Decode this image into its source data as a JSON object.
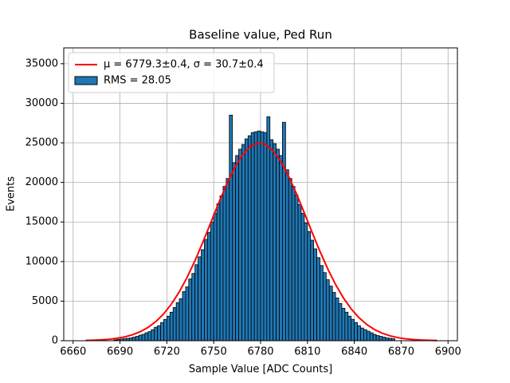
{
  "chart_data": {
    "type": "histogram",
    "title": "Baseline value, Ped Run",
    "xlabel": "Sample Value [ADC Counts]",
    "ylabel": "Events",
    "name": "RMS = 28.05",
    "color": "#1f77b4",
    "edgecolor": "#000000",
    "bins": [
      6686,
      6688,
      6690,
      6692,
      6694,
      6696,
      6698,
      6700,
      6702,
      6704,
      6706,
      6708,
      6710,
      6712,
      6714,
      6716,
      6718,
      6720,
      6722,
      6724,
      6726,
      6728,
      6730,
      6732,
      6734,
      6736,
      6738,
      6740,
      6742,
      6744,
      6746,
      6748,
      6750,
      6752,
      6754,
      6756,
      6758,
      6760,
      6762,
      6764,
      6766,
      6768,
      6770,
      6772,
      6774,
      6776,
      6778,
      6780,
      6782,
      6784,
      6786,
      6788,
      6790,
      6792,
      6794,
      6796,
      6798,
      6800,
      6802,
      6804,
      6806,
      6808,
      6810,
      6812,
      6814,
      6816,
      6818,
      6820,
      6822,
      6824,
      6826,
      6828,
      6830,
      6832,
      6834,
      6836,
      6838,
      6840,
      6842,
      6844,
      6846,
      6848,
      6850,
      6852,
      6854,
      6856,
      6858,
      6860,
      6862,
      6864,
      6866
    ],
    "counts": [
      100,
      150,
      200,
      250,
      300,
      350,
      450,
      550,
      700,
      800,
      1000,
      1150,
      1400,
      1700,
      1900,
      2300,
      2700,
      3100,
      3600,
      4200,
      4800,
      5300,
      6200,
      6800,
      7800,
      8500,
      9600,
      10600,
      11500,
      12800,
      13700,
      15000,
      16100,
      17300,
      18300,
      19500,
      20500,
      28500,
      22500,
      23400,
      24200,
      24800,
      25500,
      25900,
      26300,
      26400,
      26500,
      26400,
      26300,
      28300,
      25400,
      24900,
      24200,
      23400,
      27600,
      21600,
      20500,
      19500,
      18400,
      17200,
      16100,
      14900,
      13800,
      12700,
      11600,
      10500,
      9500,
      8600,
      7700,
      6900,
      6100,
      5400,
      4700,
      4100,
      3600,
      3100,
      2700,
      2300,
      1900,
      1600,
      1400,
      1200,
      1000,
      800,
      650,
      550,
      450,
      350,
      300,
      250
    ],
    "fit": {
      "name": "μ = 6779.3±0.4, σ = 30.7±0.4",
      "color": "#ff0000",
      "x": [
        6668,
        6673,
        6678,
        6683,
        6688,
        6693,
        6698,
        6703,
        6708,
        6713,
        6718,
        6723,
        6728,
        6733,
        6738,
        6743,
        6748,
        6753,
        6758,
        6763,
        6768,
        6773,
        6778,
        6783,
        6788,
        6793,
        6798,
        6803,
        6808,
        6813,
        6818,
        6823,
        6828,
        6833,
        6838,
        6843,
        6848,
        6853,
        6858,
        6863,
        6868,
        6873,
        6878,
        6883,
        6888,
        6893
      ],
      "values": [
        35,
        62,
        108,
        183,
        300,
        481,
        750,
        1140,
        1686,
        2428,
        3405,
        4653,
        6190,
        8018,
        10113,
        12425,
        14863,
        17320,
        19650,
        21713,
        23363,
        24480,
        24978,
        24820,
        24015,
        22630,
        20768,
        18558,
        16150,
        13685,
        11295,
        9078,
        7105,
        5415,
        4018,
        2905,
        2045,
        1400,
        935,
        608,
        385,
        237,
        142,
        83,
        47,
        26
      ]
    },
    "xlim": [
      6654,
      6906
    ],
    "ylim": [
      0,
      37000
    ],
    "xticks": [
      6660,
      6690,
      6720,
      6750,
      6780,
      6810,
      6840,
      6870,
      6900
    ],
    "yticks": [
      0,
      5000,
      10000,
      15000,
      20000,
      25000,
      30000,
      35000
    ],
    "grid": true,
    "legend": "upper left"
  }
}
